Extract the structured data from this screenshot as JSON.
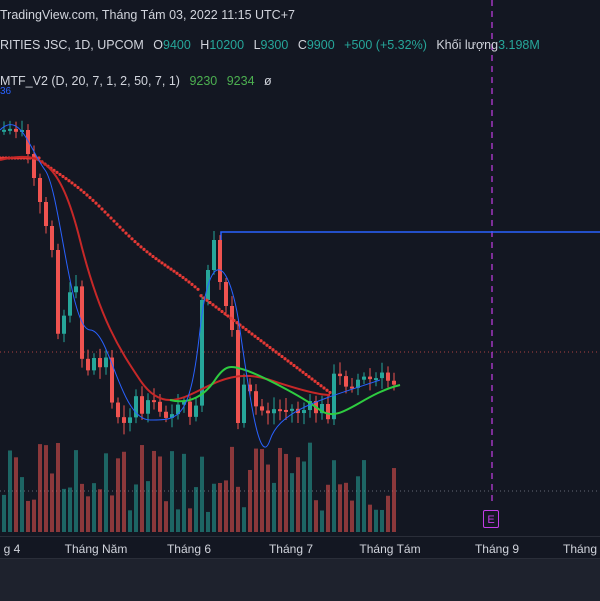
{
  "header": {
    "title": "TradingView.com, Tháng Tám 03, 2022 11:15 UTC+7",
    "symbol": "RITIES JSC, 1D, UPCOM",
    "open_label": "O",
    "open_value": "9400",
    "high_label": "H",
    "high_value": "10200",
    "low_label": "L",
    "low_value": "9300",
    "close_label": "C",
    "close_value": "9900",
    "change": "+500 (+5.32%)",
    "volume_label": "Khối lượng",
    "volume_value": "3.198M",
    "side_value": "36"
  },
  "indicator": {
    "name": "MTF_V2 (D, 20, 7, 1, 2, 50, 7, 1)",
    "value1": "9230",
    "value2": "9234",
    "value3": "ø"
  },
  "xaxis": {
    "ticks": [
      "g 4",
      "Tháng Năm",
      "Tháng 6",
      "Tháng 7",
      "Tháng Tám",
      "Tháng 9",
      "Tháng"
    ]
  },
  "event_marker": "E",
  "colors": {
    "up": "#26a69a",
    "down": "#ef5350",
    "up_strong": "#e6e64a",
    "accent_line": "#2962ff",
    "event": "#c33de6"
  }
}
